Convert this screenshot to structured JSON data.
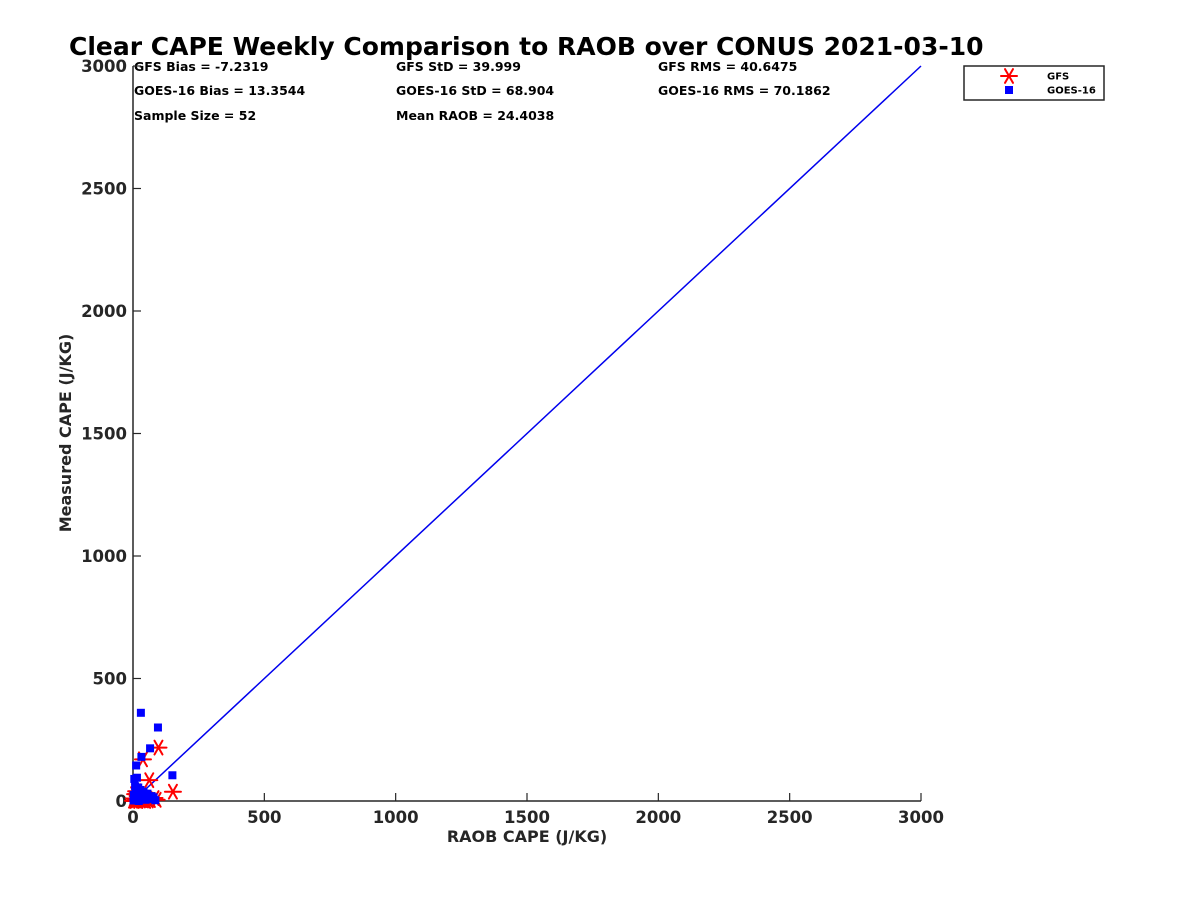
{
  "chart_data": {
    "type": "scatter",
    "title": "Clear CAPE Weekly Comparison to RAOB over CONUS 2021-03-10",
    "xlabel": "RAOB CAPE (J/KG)",
    "ylabel": "Measured CAPE (J/KG)",
    "xlim": [
      0,
      3000
    ],
    "ylim": [
      0,
      3000
    ],
    "xticks": [
      "0",
      "500",
      "1000",
      "1500",
      "2000",
      "2500",
      "3000"
    ],
    "yticks": [
      "0",
      "500",
      "1000",
      "1500",
      "2000",
      "2500",
      "3000"
    ],
    "grid": false,
    "legend_position": "top-right",
    "stats": [
      [
        "GFS Bias = -7.2319",
        "GFS StD = 39.999",
        "GFS RMS = 40.6475"
      ],
      [
        "GOES-16 Bias = 13.3544",
        "GOES-16 StD = 68.904",
        "GOES-16 RMS = 70.1862"
      ],
      [
        "Sample Size = 52",
        "Mean RAOB = 24.4038",
        ""
      ]
    ],
    "reference_line": {
      "x": [
        0,
        3000
      ],
      "y": [
        0,
        3000
      ],
      "color": "#0000ee"
    },
    "series": [
      {
        "name": "GFS",
        "marker": "asterisk",
        "color": "#ff0000",
        "points": [
          [
            97,
            218
          ],
          [
            38,
            170
          ],
          [
            62,
            85
          ],
          [
            152,
            38
          ],
          [
            90,
            5
          ],
          [
            82,
            12
          ],
          [
            55,
            8
          ],
          [
            68,
            4
          ],
          [
            30,
            3
          ],
          [
            22,
            6
          ],
          [
            15,
            5
          ],
          [
            10,
            2
          ],
          [
            5,
            0
          ],
          [
            3,
            10
          ],
          [
            8,
            28
          ],
          [
            12,
            40
          ],
          [
            18,
            20
          ],
          [
            25,
            10
          ],
          [
            35,
            5
          ],
          [
            42,
            2
          ],
          [
            50,
            0
          ],
          [
            60,
            2
          ],
          [
            45,
            14
          ],
          [
            20,
            0
          ],
          [
            0,
            1
          ]
        ]
      },
      {
        "name": "GOES-16",
        "marker": "square",
        "color": "#0000ff",
        "points": [
          [
            30,
            360
          ],
          [
            95,
            300
          ],
          [
            65,
            215
          ],
          [
            32,
            180
          ],
          [
            150,
            105
          ],
          [
            12,
            145
          ],
          [
            5,
            90
          ],
          [
            15,
            95
          ],
          [
            8,
            60
          ],
          [
            20,
            55
          ],
          [
            28,
            45
          ],
          [
            40,
            38
          ],
          [
            55,
            30
          ],
          [
            70,
            20
          ],
          [
            10,
            30
          ],
          [
            3,
            25
          ],
          [
            18,
            15
          ],
          [
            25,
            20
          ],
          [
            35,
            12
          ],
          [
            48,
            5
          ],
          [
            60,
            8
          ],
          [
            78,
            15
          ],
          [
            85,
            3
          ],
          [
            2,
            2
          ],
          [
            6,
            10
          ],
          [
            14,
            4
          ],
          [
            22,
            0
          ]
        ]
      }
    ]
  }
}
